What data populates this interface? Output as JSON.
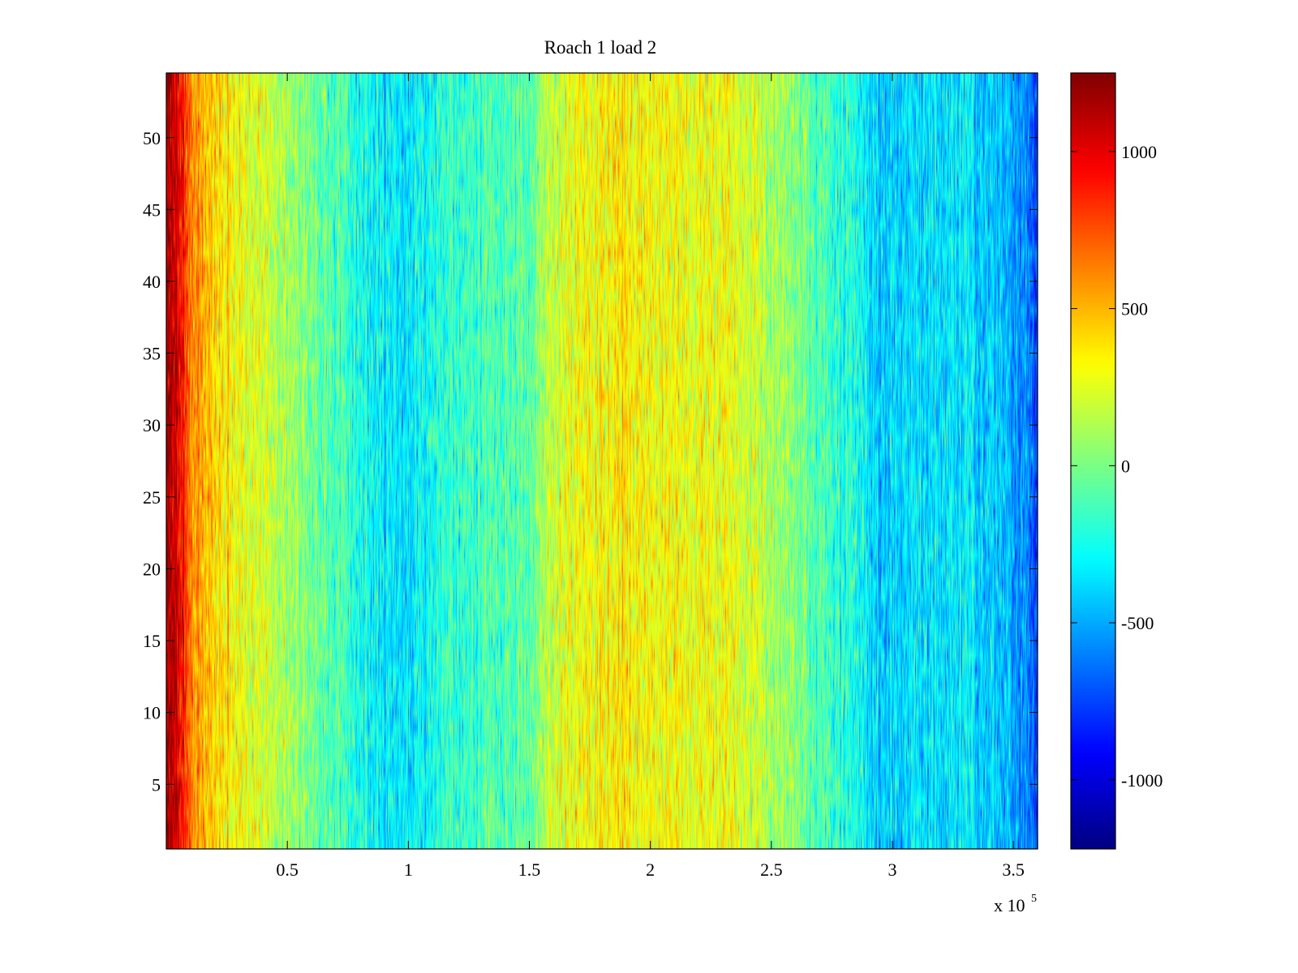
{
  "chart_data": {
    "type": "heatmap",
    "title": "Roach 1 load 2",
    "xlabel": "",
    "ylabel": "",
    "x_exponent_label": "x 10",
    "x_exponent_power": "5",
    "xlim": [
      0,
      360000
    ],
    "ylim": [
      0.5,
      54.5
    ],
    "n_rows": 54,
    "colormap": "jet",
    "clim": [
      -1220,
      1250
    ],
    "x_ticks": [
      {
        "value": 50000,
        "label": "0.5"
      },
      {
        "value": 100000,
        "label": "1"
      },
      {
        "value": 150000,
        "label": "1.5"
      },
      {
        "value": 200000,
        "label": "2"
      },
      {
        "value": 250000,
        "label": "2.5"
      },
      {
        "value": 300000,
        "label": "3"
      },
      {
        "value": 350000,
        "label": "3.5"
      }
    ],
    "y_ticks": [
      {
        "value": 5,
        "label": "5"
      },
      {
        "value": 10,
        "label": "10"
      },
      {
        "value": 15,
        "label": "15"
      },
      {
        "value": 20,
        "label": "20"
      },
      {
        "value": 25,
        "label": "25"
      },
      {
        "value": 30,
        "label": "30"
      },
      {
        "value": 35,
        "label": "35"
      },
      {
        "value": 40,
        "label": "40"
      },
      {
        "value": 45,
        "label": "45"
      },
      {
        "value": 50,
        "label": "50"
      }
    ],
    "colorbar_ticks": [
      {
        "value": 1000,
        "label": "1000"
      },
      {
        "value": 500,
        "label": "500"
      },
      {
        "value": 0,
        "label": "0"
      },
      {
        "value": -500,
        "label": "-500"
      },
      {
        "value": -1000,
        "label": "-1000"
      }
    ],
    "column_profile": [
      {
        "x": 0,
        "value": 1150
      },
      {
        "x": 3000,
        "value": 1100
      },
      {
        "x": 7000,
        "value": 900
      },
      {
        "x": 10000,
        "value": 650
      },
      {
        "x": 15000,
        "value": 480
      },
      {
        "x": 25000,
        "value": 350
      },
      {
        "x": 35000,
        "value": 250
      },
      {
        "x": 46000,
        "value": 160
      },
      {
        "x": 60000,
        "value": 0
      },
      {
        "x": 75000,
        "value": -180
      },
      {
        "x": 90000,
        "value": -350
      },
      {
        "x": 100000,
        "value": -320
      },
      {
        "x": 115000,
        "value": -200
      },
      {
        "x": 135000,
        "value": -100
      },
      {
        "x": 150000,
        "value": -80
      },
      {
        "x": 156000,
        "value": 150
      },
      {
        "x": 170000,
        "value": 300
      },
      {
        "x": 185000,
        "value": 350
      },
      {
        "x": 205000,
        "value": 300
      },
      {
        "x": 230000,
        "value": 280
      },
      {
        "x": 250000,
        "value": 120
      },
      {
        "x": 270000,
        "value": -100
      },
      {
        "x": 285000,
        "value": -250
      },
      {
        "x": 295000,
        "value": -450
      },
      {
        "x": 310000,
        "value": -350
      },
      {
        "x": 330000,
        "value": -350
      },
      {
        "x": 345000,
        "value": -450
      },
      {
        "x": 355000,
        "value": -600
      },
      {
        "x": 360000,
        "value": -750
      }
    ]
  }
}
